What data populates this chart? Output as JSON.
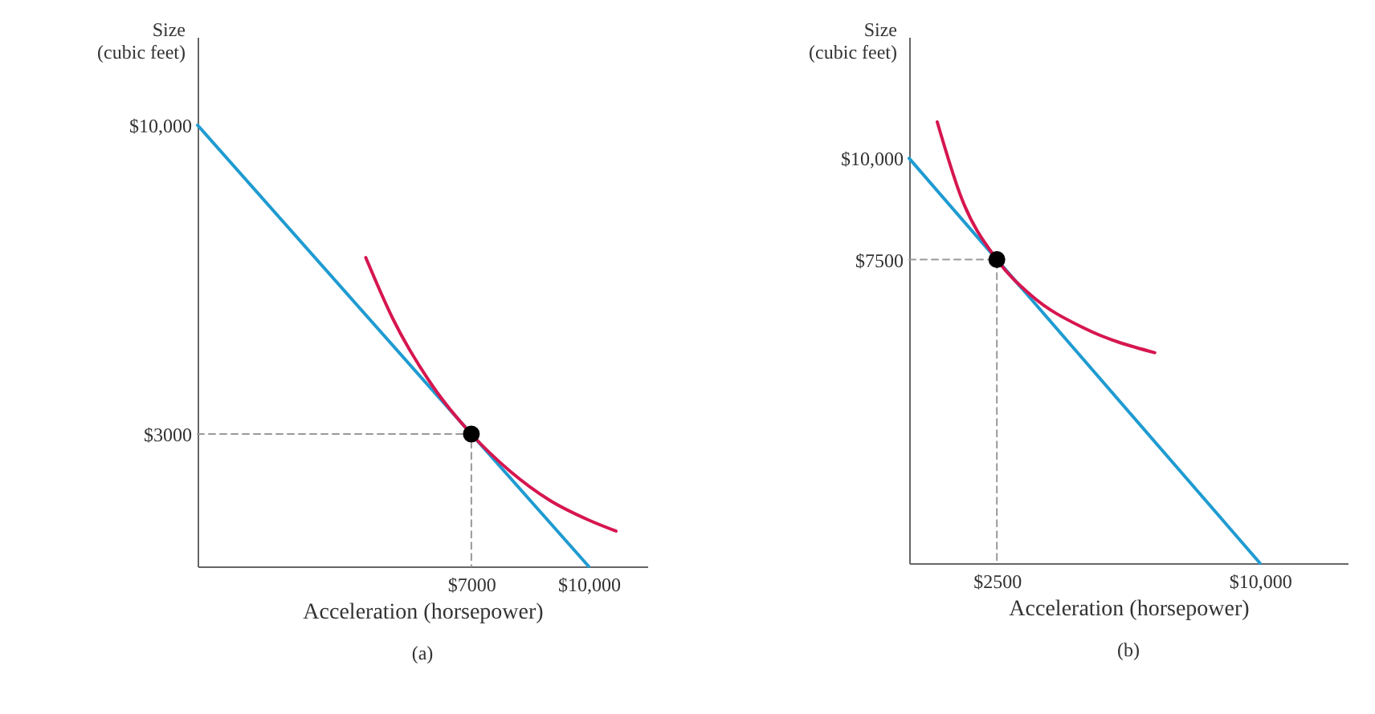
{
  "chart_data": [
    {
      "type": "line",
      "xlabel": "Acceleration (horsepower)",
      "ylabel": "Size\n(cubic feet)",
      "annotations": [
        "(a)"
      ],
      "xlim": [
        0,
        11500
      ],
      "ylim": [
        0,
        12000
      ],
      "xticks": [
        {
          "value": 7000,
          "label": "$7000"
        },
        {
          "value": 10000,
          "label": "$10,000"
        }
      ],
      "yticks": [
        {
          "value": 3000,
          "label": "$3000"
        },
        {
          "value": 10000,
          "label": "$10,000"
        }
      ],
      "series": [
        {
          "color": "#1f9bd1",
          "x": [
            0,
            10000
          ],
          "values": [
            10000,
            0
          ]
        },
        {
          "color": "#d6164f",
          "x": [
            4300,
            5000,
            6000,
            7000,
            8000,
            9000,
            10000,
            10700
          ],
          "values": [
            7000,
            5600,
            4100,
            3000,
            2150,
            1500,
            1050,
            800
          ]
        },
        {
          "color": "#999999",
          "line_style": "dashed",
          "x": [
            0,
            7000,
            7000
          ],
          "values": [
            3000,
            3000,
            0
          ]
        },
        {
          "type": "scatter",
          "marker": "circle",
          "color": "#000000",
          "x": [
            7000
          ],
          "values": [
            3000
          ]
        }
      ]
    },
    {
      "type": "line",
      "xlabel": "Acceleration (horsepower)",
      "ylabel": "Size\n(cubic feet)",
      "annotations": [
        "(b)"
      ],
      "xlim": [
        0,
        12500
      ],
      "ylim": [
        0,
        13000
      ],
      "xticks": [
        {
          "value": 2500,
          "label": "$2500"
        },
        {
          "value": 10000,
          "label": "$10,000"
        }
      ],
      "yticks": [
        {
          "value": 7500,
          "label": "$7500"
        },
        {
          "value": 10000,
          "label": "$10,000"
        }
      ],
      "series": [
        {
          "color": "#1f9bd1",
          "x": [
            0,
            10000
          ],
          "values": [
            10000,
            0
          ]
        },
        {
          "color": "#d6164f",
          "x": [
            800,
            1500,
            2500,
            3500,
            5000,
            7000
          ],
          "values": [
            10900,
            9000,
            7500,
            6600,
            5800,
            5200
          ]
        },
        {
          "color": "#999999",
          "line_style": "dashed",
          "x": [
            0,
            2500,
            2500
          ],
          "values": [
            7500,
            7500,
            0
          ]
        },
        {
          "type": "scatter",
          "marker": "circle",
          "color": "#000000",
          "x": [
            2500
          ],
          "values": [
            7500
          ]
        }
      ]
    }
  ]
}
